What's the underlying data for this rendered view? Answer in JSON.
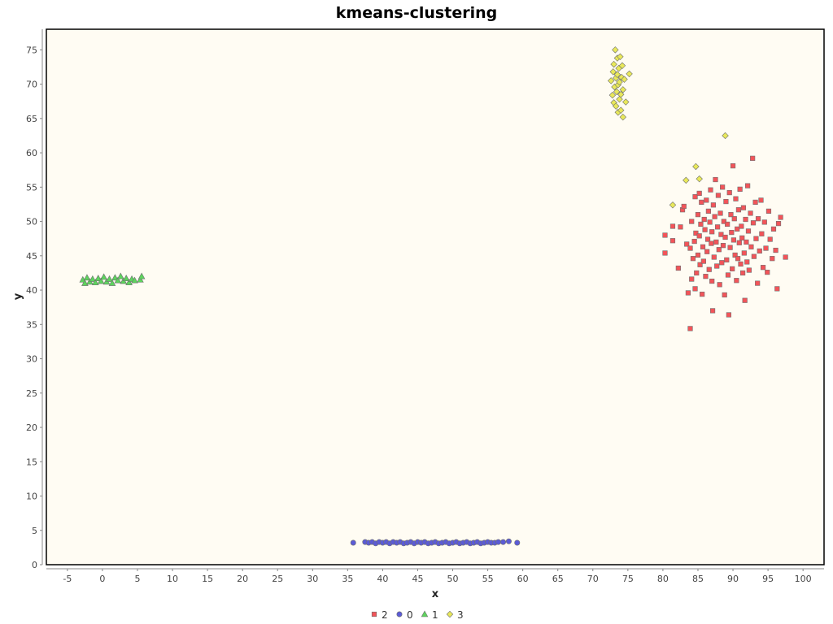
{
  "chart_data": {
    "type": "scatter",
    "title": "kmeans-clustering",
    "xlabel": "x",
    "ylabel": "y",
    "xlim": [
      -8,
      103
    ],
    "ylim": [
      0,
      78
    ],
    "xticks": [
      -5,
      0,
      5,
      10,
      15,
      20,
      25,
      30,
      35,
      40,
      45,
      50,
      55,
      60,
      65,
      70,
      75,
      80,
      85,
      90,
      95,
      100
    ],
    "yticks": [
      0,
      5,
      10,
      15,
      20,
      25,
      30,
      35,
      40,
      45,
      50,
      55,
      60,
      65,
      70,
      75
    ],
    "grid": false,
    "legend_position": "bottom-center",
    "background_color": "#fffcf3",
    "series": [
      {
        "name": "2",
        "marker": "square",
        "color": "#f25459",
        "points": [
          [
            80.3,
            45.4
          ],
          [
            80.3,
            48.0
          ],
          [
            81.4,
            49.3
          ],
          [
            81.4,
            47.2
          ],
          [
            82.2,
            43.2
          ],
          [
            82.5,
            49.2
          ],
          [
            82.8,
            51.7
          ],
          [
            83.0,
            52.2
          ],
          [
            83.4,
            46.7
          ],
          [
            83.6,
            39.6
          ],
          [
            83.9,
            34.4
          ],
          [
            83.9,
            46.1
          ],
          [
            84.1,
            41.6
          ],
          [
            84.1,
            50.0
          ],
          [
            84.3,
            44.6
          ],
          [
            84.5,
            47.1
          ],
          [
            84.6,
            53.6
          ],
          [
            84.6,
            40.2
          ],
          [
            84.7,
            48.3
          ],
          [
            84.8,
            42.5
          ],
          [
            85.0,
            45.1
          ],
          [
            85.0,
            51.0
          ],
          [
            85.2,
            54.1
          ],
          [
            85.2,
            47.9
          ],
          [
            85.3,
            43.7
          ],
          [
            85.4,
            49.6
          ],
          [
            85.5,
            52.8
          ],
          [
            85.6,
            39.4
          ],
          [
            85.7,
            46.3
          ],
          [
            85.8,
            44.2
          ],
          [
            85.9,
            50.3
          ],
          [
            86.0,
            48.8
          ],
          [
            86.1,
            42.0
          ],
          [
            86.2,
            53.1
          ],
          [
            86.3,
            45.6
          ],
          [
            86.4,
            47.4
          ],
          [
            86.5,
            51.5
          ],
          [
            86.6,
            43.0
          ],
          [
            86.7,
            49.9
          ],
          [
            86.8,
            54.6
          ],
          [
            86.9,
            46.8
          ],
          [
            87.0,
            41.3
          ],
          [
            87.0,
            48.5
          ],
          [
            87.1,
            37.0
          ],
          [
            87.2,
            52.4
          ],
          [
            87.3,
            44.8
          ],
          [
            87.4,
            50.7
          ],
          [
            87.5,
            56.1
          ],
          [
            87.6,
            47.0
          ],
          [
            87.7,
            43.5
          ],
          [
            87.8,
            49.2
          ],
          [
            87.9,
            53.8
          ],
          [
            88.0,
            45.9
          ],
          [
            88.1,
            40.8
          ],
          [
            88.2,
            51.2
          ],
          [
            88.3,
            48.1
          ],
          [
            88.4,
            44.0
          ],
          [
            88.5,
            55.0
          ],
          [
            88.6,
            46.5
          ],
          [
            88.7,
            50.0
          ],
          [
            88.8,
            39.3
          ],
          [
            88.9,
            47.7
          ],
          [
            89.0,
            52.9
          ],
          [
            89.1,
            44.4
          ],
          [
            89.2,
            49.6
          ],
          [
            89.3,
            42.2
          ],
          [
            89.4,
            36.4
          ],
          [
            89.5,
            54.2
          ],
          [
            89.6,
            46.2
          ],
          [
            89.7,
            51.0
          ],
          [
            89.8,
            48.4
          ],
          [
            89.9,
            43.1
          ],
          [
            90.0,
            58.1
          ],
          [
            90.1,
            47.3
          ],
          [
            90.2,
            50.4
          ],
          [
            90.3,
            45.1
          ],
          [
            90.4,
            53.3
          ],
          [
            90.5,
            41.4
          ],
          [
            90.6,
            48.9
          ],
          [
            90.7,
            44.6
          ],
          [
            90.8,
            51.7
          ],
          [
            90.9,
            46.9
          ],
          [
            91.0,
            54.7
          ],
          [
            91.1,
            43.8
          ],
          [
            91.2,
            49.3
          ],
          [
            91.3,
            47.6
          ],
          [
            91.4,
            42.5
          ],
          [
            91.5,
            52.0
          ],
          [
            91.6,
            45.4
          ],
          [
            91.7,
            38.5
          ],
          [
            91.8,
            50.3
          ],
          [
            91.9,
            47.0
          ],
          [
            92.0,
            44.1
          ],
          [
            92.1,
            55.2
          ],
          [
            92.2,
            48.6
          ],
          [
            92.3,
            42.9
          ],
          [
            92.5,
            51.2
          ],
          [
            92.6,
            46.3
          ],
          [
            92.8,
            59.2
          ],
          [
            92.9,
            49.8
          ],
          [
            93.0,
            44.9
          ],
          [
            93.2,
            52.8
          ],
          [
            93.3,
            47.5
          ],
          [
            93.5,
            41.0
          ],
          [
            93.6,
            50.4
          ],
          [
            93.8,
            45.7
          ],
          [
            94.0,
            53.1
          ],
          [
            94.1,
            48.2
          ],
          [
            94.3,
            43.3
          ],
          [
            94.5,
            49.9
          ],
          [
            94.7,
            46.1
          ],
          [
            94.9,
            42.6
          ],
          [
            95.1,
            51.5
          ],
          [
            95.3,
            47.4
          ],
          [
            95.6,
            44.6
          ],
          [
            95.8,
            48.9
          ],
          [
            96.1,
            45.8
          ],
          [
            96.3,
            40.2
          ],
          [
            96.5,
            49.7
          ],
          [
            96.8,
            50.6
          ],
          [
            97.5,
            44.8
          ]
        ]
      },
      {
        "name": "0",
        "marker": "circle",
        "color": "#5b5bd6",
        "points": [
          [
            35.8,
            3.2
          ],
          [
            37.5,
            3.3
          ],
          [
            38.0,
            3.2
          ],
          [
            38.5,
            3.3
          ],
          [
            39.0,
            3.1
          ],
          [
            39.5,
            3.3
          ],
          [
            40.0,
            3.2
          ],
          [
            40.5,
            3.3
          ],
          [
            41.0,
            3.1
          ],
          [
            41.5,
            3.3
          ],
          [
            42.0,
            3.2
          ],
          [
            42.5,
            3.3
          ],
          [
            43.0,
            3.1
          ],
          [
            43.5,
            3.2
          ],
          [
            44.0,
            3.3
          ],
          [
            44.5,
            3.1
          ],
          [
            45.0,
            3.3
          ],
          [
            45.5,
            3.2
          ],
          [
            46.0,
            3.3
          ],
          [
            46.5,
            3.1
          ],
          [
            47.0,
            3.2
          ],
          [
            47.5,
            3.3
          ],
          [
            48.0,
            3.1
          ],
          [
            48.5,
            3.2
          ],
          [
            49.0,
            3.3
          ],
          [
            49.5,
            3.1
          ],
          [
            50.0,
            3.2
          ],
          [
            50.5,
            3.3
          ],
          [
            51.0,
            3.1
          ],
          [
            51.5,
            3.2
          ],
          [
            52.0,
            3.3
          ],
          [
            52.5,
            3.1
          ],
          [
            53.0,
            3.2
          ],
          [
            53.5,
            3.3
          ],
          [
            54.0,
            3.1
          ],
          [
            54.5,
            3.2
          ],
          [
            55.0,
            3.3
          ],
          [
            55.5,
            3.2
          ],
          [
            56.0,
            3.2
          ],
          [
            56.5,
            3.3
          ],
          [
            57.2,
            3.3
          ],
          [
            58.0,
            3.4
          ],
          [
            59.2,
            3.2
          ]
        ]
      },
      {
        "name": "1",
        "marker": "triangle",
        "color": "#5dd45d",
        "points": [
          [
            -2.8,
            41.5
          ],
          [
            -2.5,
            41.0
          ],
          [
            -2.2,
            41.8
          ],
          [
            -1.8,
            41.2
          ],
          [
            -1.4,
            41.6
          ],
          [
            -1.0,
            41.1
          ],
          [
            -0.6,
            41.7
          ],
          [
            -0.2,
            41.3
          ],
          [
            0.2,
            41.9
          ],
          [
            0.6,
            41.2
          ],
          [
            1.0,
            41.6
          ],
          [
            1.4,
            41.0
          ],
          [
            1.8,
            41.8
          ],
          [
            2.2,
            41.4
          ],
          [
            2.6,
            42.0
          ],
          [
            3.0,
            41.3
          ],
          [
            3.4,
            41.7
          ],
          [
            3.8,
            41.1
          ],
          [
            4.2,
            41.6
          ],
          [
            4.6,
            41.4
          ],
          [
            5.4,
            41.5
          ],
          [
            5.6,
            42.0
          ]
        ]
      },
      {
        "name": "3",
        "marker": "diamond",
        "color": "#e8e85a",
        "points": [
          [
            72.6,
            70.5
          ],
          [
            72.8,
            68.4
          ],
          [
            72.9,
            71.8
          ],
          [
            73.0,
            67.3
          ],
          [
            73.0,
            72.9
          ],
          [
            73.1,
            69.6
          ],
          [
            73.2,
            75.0
          ],
          [
            73.3,
            70.9
          ],
          [
            73.3,
            66.8
          ],
          [
            73.4,
            68.9
          ],
          [
            73.5,
            73.8
          ],
          [
            73.5,
            71.4
          ],
          [
            73.6,
            65.9
          ],
          [
            73.6,
            69.9
          ],
          [
            73.7,
            72.3
          ],
          [
            73.8,
            67.8
          ],
          [
            73.8,
            70.3
          ],
          [
            73.9,
            74.0
          ],
          [
            74.0,
            68.5
          ],
          [
            74.0,
            66.2
          ],
          [
            74.1,
            71.0
          ],
          [
            74.2,
            72.7
          ],
          [
            74.3,
            65.2
          ],
          [
            74.3,
            69.2
          ],
          [
            74.5,
            70.7
          ],
          [
            74.7,
            67.4
          ],
          [
            75.2,
            71.5
          ],
          [
            81.4,
            52.4
          ],
          [
            83.3,
            56.0
          ],
          [
            84.7,
            58.0
          ],
          [
            85.2,
            56.2
          ],
          [
            88.9,
            62.5
          ]
        ]
      }
    ]
  }
}
